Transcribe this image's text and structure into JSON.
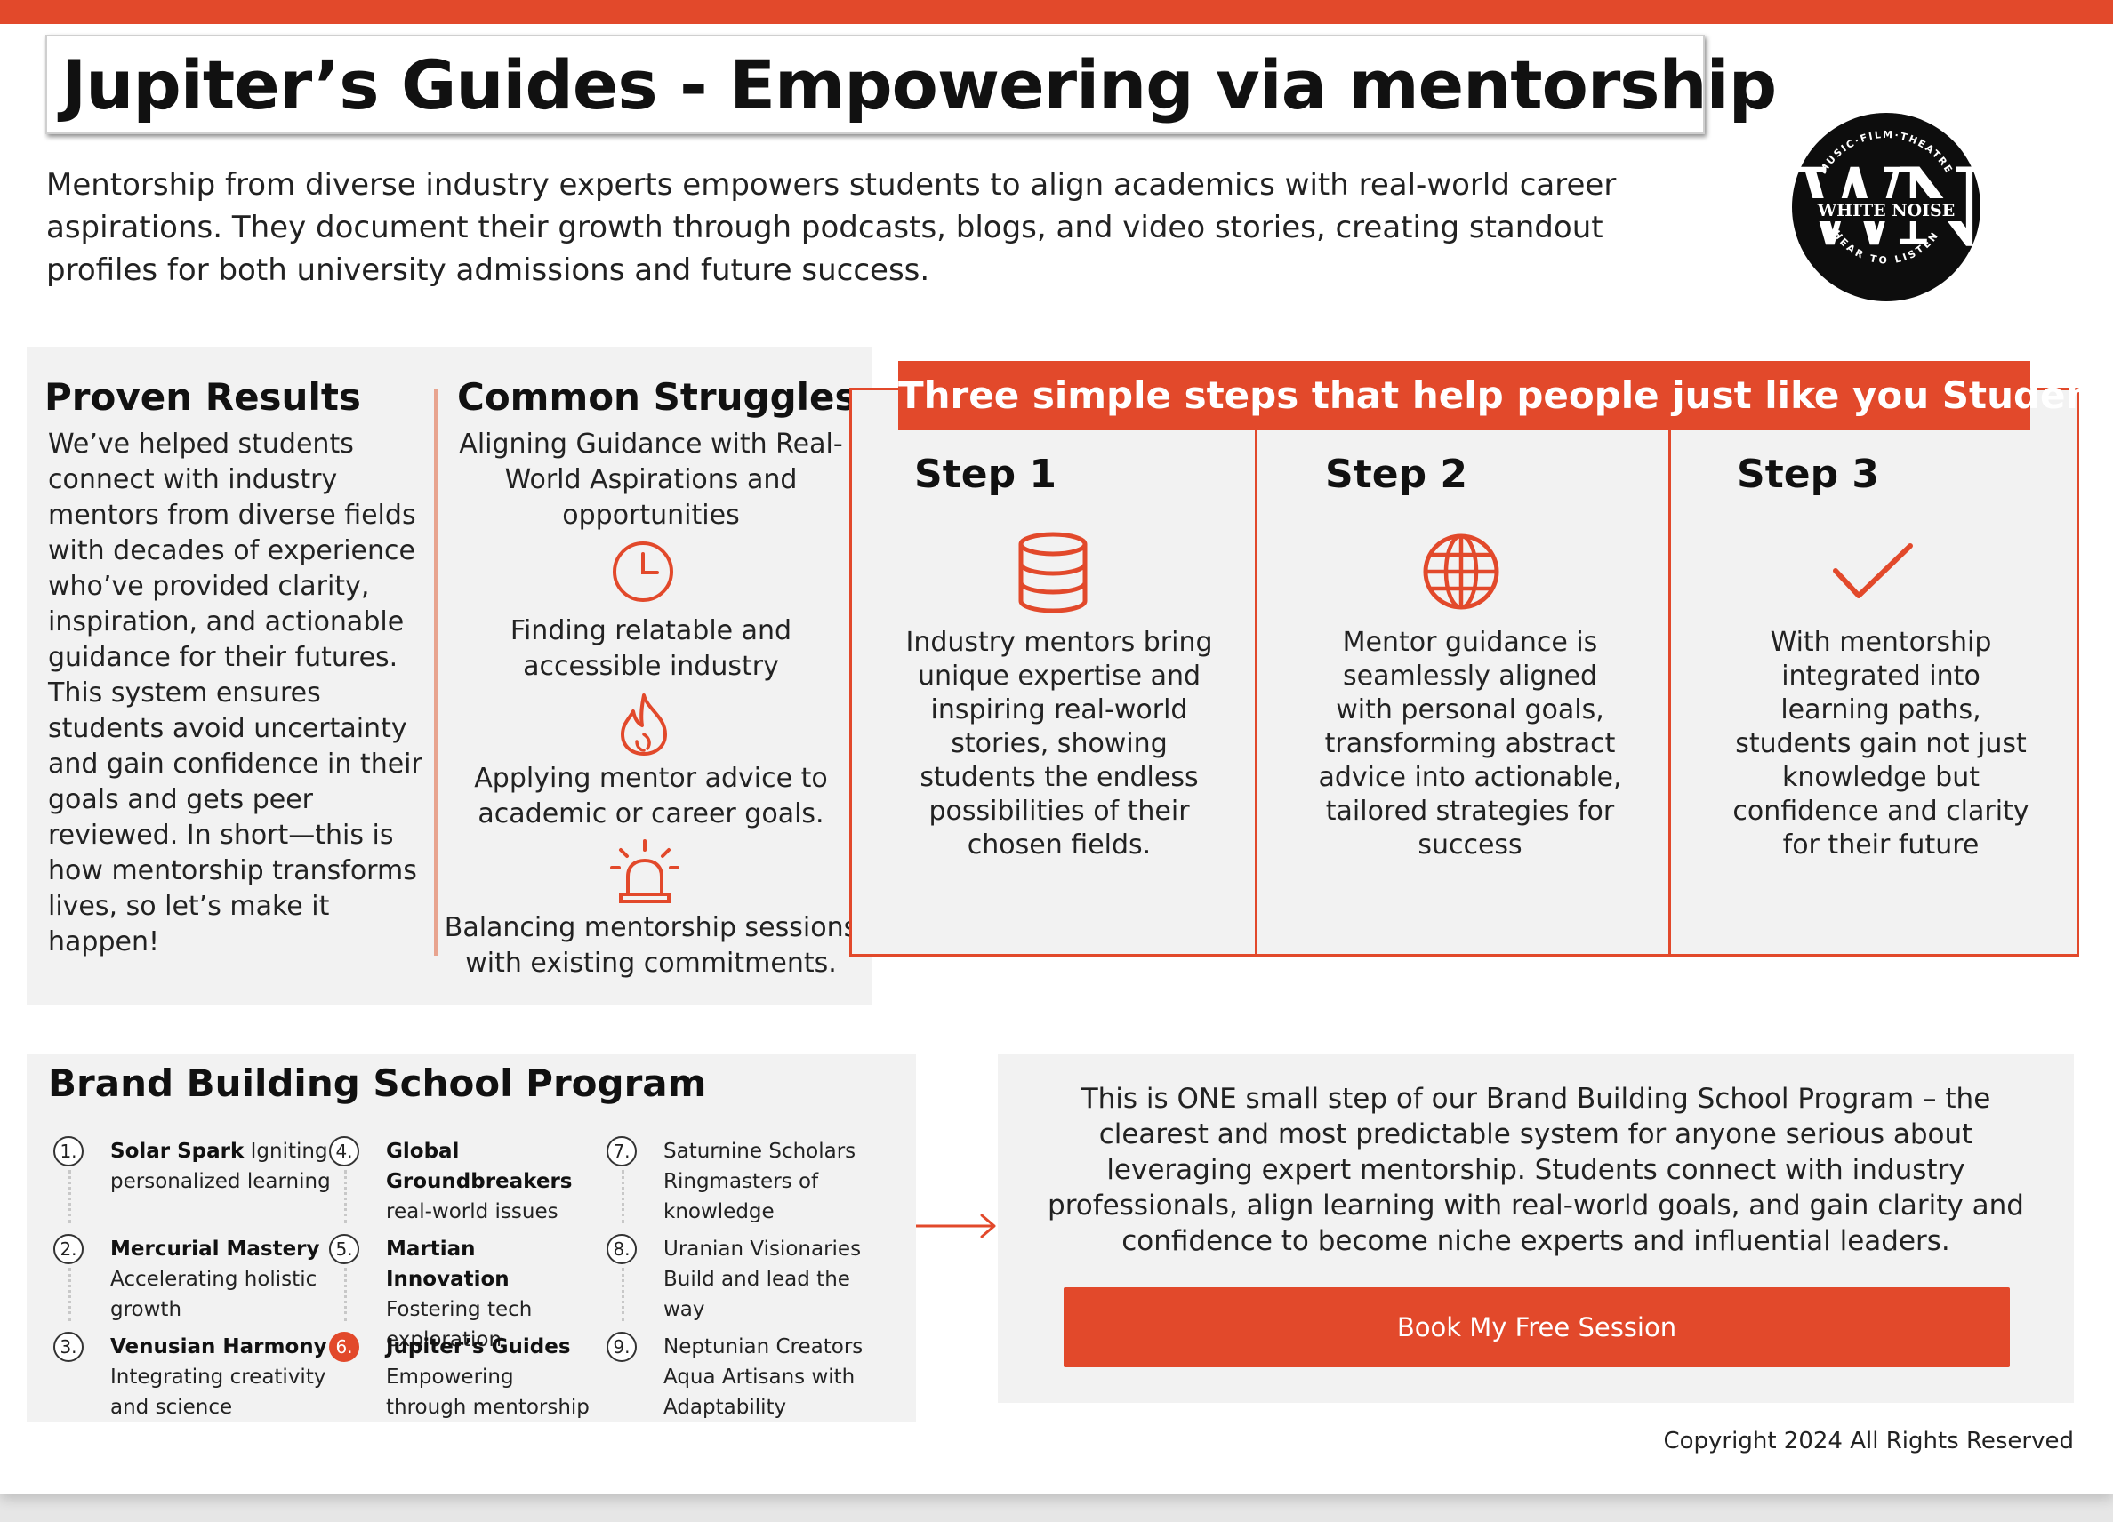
{
  "header": {
    "title": "Jupiter’s Guides - Empowering via mentorship",
    "intro": "Mentorship from diverse industry experts empowers students to align academics with real-world career aspirations. They document their growth through podcasts, blogs, and video stories, creating standout profiles for both university admissions and future success."
  },
  "logo": {
    "initials": "WN",
    "name": "WHITE NOISE",
    "top_text": "MUSIC·FILM·THEATRE",
    "bottom_text": "HEAR TO LISTEN"
  },
  "proven": {
    "title": "Proven Results",
    "body": "We’ve helped students connect with industry mentors from diverse fields with decades of experience who’ve provided clarity, inspiration, and actionable guidance for their futures. This system ensures students avoid uncertainty and gain confidence in their goals and gets peer reviewed. In short—this is how mentorship transforms lives, so let’s make it happen!"
  },
  "struggles": {
    "title": "Common Struggles",
    "items": [
      {
        "text": "Aligning Guidance with Real-World Aspirations and opportunities",
        "icon": "clock-icon"
      },
      {
        "text": "Finding relatable and accessible industry",
        "icon": "flame-icon"
      },
      {
        "text": "Applying mentor advice to academic or career goals.",
        "icon": "alarm-icon"
      },
      {
        "text": "Balancing mentorship sessions with existing commitments.",
        "icon": ""
      }
    ]
  },
  "steps": {
    "banner": "Three simple steps that help people just like you Students",
    "items": [
      {
        "title": "Step 1",
        "icon": "database-icon",
        "body": "Industry mentors bring unique expertise and inspiring real-world stories, showing students the endless possibilities of their chosen fields."
      },
      {
        "title": "Step 2",
        "icon": "globe-icon",
        "body": "Mentor guidance is seamlessly aligned with personal goals, transforming abstract advice into actionable, tailored strategies for success"
      },
      {
        "title": "Step 3",
        "icon": "check-icon",
        "body": "With mentorship integrated into learning paths, students gain not just knowledge but confidence and clarity for their future"
      }
    ]
  },
  "program": {
    "title": "Brand Building School Program",
    "items": [
      {
        "num": "1.",
        "bold": "Solar Spark",
        "rest": " Igniting personalized learning"
      },
      {
        "num": "2.",
        "bold": "Mercurial Mastery",
        "rest": " Accelerating holistic growth"
      },
      {
        "num": "3.",
        "bold": "Venusian Harmony",
        "rest": " Integrating creativity and science"
      },
      {
        "num": "4.",
        "bold": "Global Groundbreakers",
        "rest": " real-world issues"
      },
      {
        "num": "5.",
        "bold": "Martian Innovation",
        "rest": " Fostering tech exploration"
      },
      {
        "num": "6.",
        "bold": "Jupiter’s Guides",
        "rest": " Empowering through mentorship"
      },
      {
        "num": "7.",
        "bold": "",
        "rest": "Saturnine Scholars Ringmasters of knowledge"
      },
      {
        "num": "8.",
        "bold": "",
        "rest": "Uranian Visionaries Build and lead the way"
      },
      {
        "num": "9.",
        "bold": "",
        "rest": "Neptunian Creators Aqua Artisans with Adaptability"
      }
    ]
  },
  "cta": {
    "text": "This is ONE small step of our Brand Building School Program – the clearest and most predictable system for anyone serious about leveraging expert mentorship. Students connect with industry professionals, align learning with real-world goals, and gain clarity and confidence to become niche experts and influential leaders.",
    "button": "Book My Free Session"
  },
  "footer": {
    "copyright": "Copyright 2024 All Rights Reserved"
  },
  "colors": {
    "accent": "#e2492b",
    "panel": "#f2f2f2",
    "text": "#222222"
  }
}
